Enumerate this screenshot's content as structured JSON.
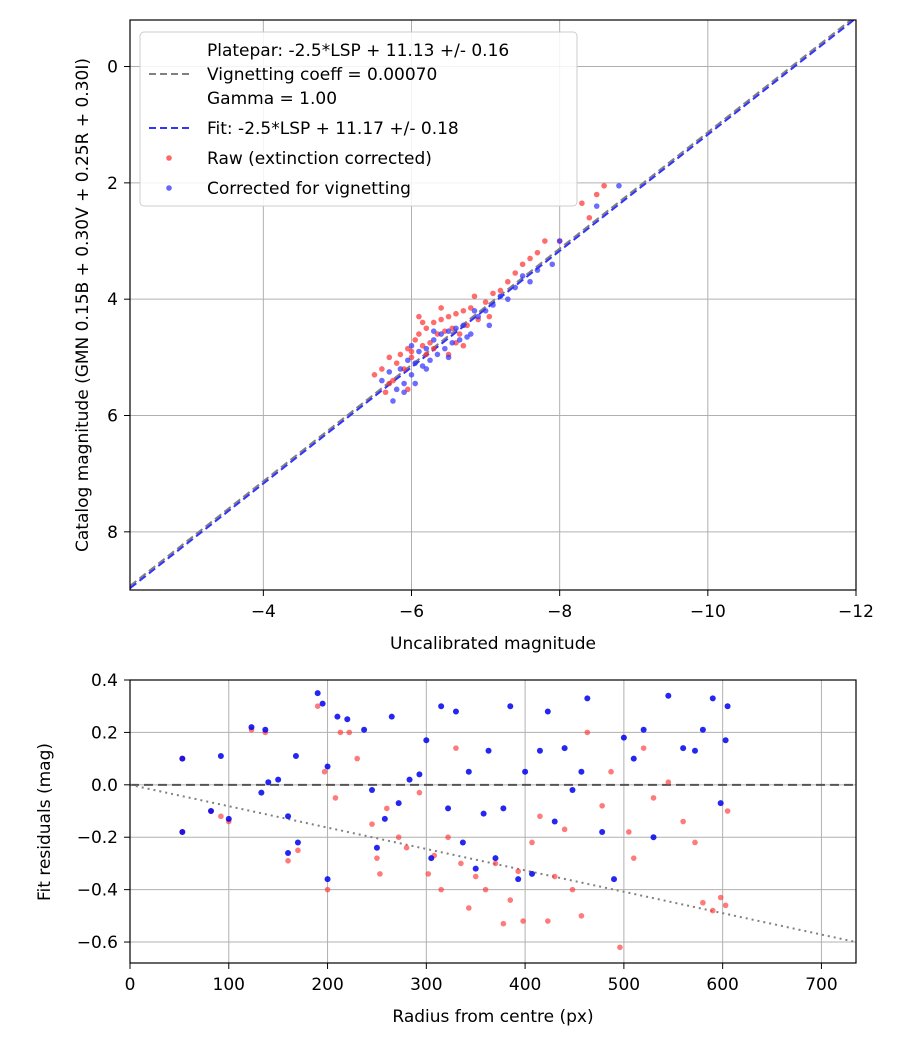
{
  "chart_data": [
    {
      "type": "scatter",
      "xlabel": "Uncalibrated magnitude",
      "ylabel": "Catalog magnitude (GMN 0.15B + 0.30V + 0.25R + 0.30I)",
      "xlim": [
        -2.2,
        -12.0
      ],
      "ylim": [
        9.0,
        -0.8
      ],
      "x_ticks": [
        -4,
        -6,
        -8,
        -10,
        -12
      ],
      "y_ticks": [
        0,
        2,
        4,
        6,
        8
      ],
      "grid": true,
      "legend_position": "top-left",
      "legend": [
        {
          "label": "Platepar: -2.5*LSP + 11.13 +/- 0.16",
          "marker": "none"
        },
        {
          "label": "Vignetting coeff = 0.00070",
          "marker": "dashed-line",
          "color": "#808080"
        },
        {
          "label": "Gamma = 1.00",
          "marker": "none"
        },
        {
          "label": "Fit: -2.5*LSP + 11.17 +/- 0.18",
          "marker": "dashed-line",
          "color": "#3333ff"
        },
        {
          "label": "Raw (extinction corrected)",
          "marker": "dot",
          "color": "#ff3333"
        },
        {
          "label": "Corrected for vignetting",
          "marker": "dot",
          "color": "#3333ff"
        }
      ],
      "lines": [
        {
          "name": "Platepar",
          "slope_per_lsp": -2.5,
          "intercept": 11.13,
          "x_range": [
            -2.2,
            -12.0
          ],
          "color": "#808080",
          "style": "dashed"
        },
        {
          "name": "Fit",
          "slope_per_lsp": -2.5,
          "intercept": 11.17,
          "x_range": [
            -2.2,
            -12.0
          ],
          "color": "#3333ff",
          "style": "dashed"
        }
      ],
      "series": [
        {
          "name": "Raw (extinction corrected)",
          "color": "#ff3333",
          "points": [
            [
              -5.5,
              5.3
            ],
            [
              -5.6,
              5.2
            ],
            [
              -5.7,
              5.0
            ],
            [
              -5.75,
              5.4
            ],
            [
              -5.8,
              5.1
            ],
            [
              -5.85,
              4.95
            ],
            [
              -5.9,
              5.2
            ],
            [
              -5.95,
              4.85
            ],
            [
              -6.0,
              5.0
            ],
            [
              -6.05,
              4.7
            ],
            [
              -6.1,
              4.6
            ],
            [
              -6.15,
              4.8
            ],
            [
              -6.2,
              4.5
            ],
            [
              -6.25,
              4.75
            ],
            [
              -6.3,
              4.4
            ],
            [
              -6.35,
              4.6
            ],
            [
              -6.4,
              4.35
            ],
            [
              -6.45,
              4.55
            ],
            [
              -6.5,
              4.3
            ],
            [
              -6.55,
              4.5
            ],
            [
              -6.6,
              4.25
            ],
            [
              -6.65,
              4.6
            ],
            [
              -6.7,
              4.2
            ],
            [
              -6.75,
              4.45
            ],
            [
              -6.8,
              4.15
            ],
            [
              -6.9,
              4.35
            ],
            [
              -7.0,
              4.05
            ],
            [
              -7.1,
              3.9
            ],
            [
              -7.2,
              3.85
            ],
            [
              -7.3,
              3.7
            ],
            [
              -7.4,
              3.55
            ],
            [
              -7.5,
              3.4
            ],
            [
              -7.6,
              3.3
            ],
            [
              -7.7,
              3.2
            ],
            [
              -7.8,
              3.0
            ],
            [
              -8.0,
              3.0
            ],
            [
              -8.3,
              2.35
            ],
            [
              -8.5,
              2.2
            ],
            [
              -8.6,
              2.05
            ],
            [
              -8.4,
              2.6
            ],
            [
              -5.95,
              5.55
            ],
            [
              -6.0,
              4.9
            ],
            [
              -6.1,
              4.3
            ],
            [
              -6.2,
              4.95
            ],
            [
              -6.3,
              4.85
            ],
            [
              -6.4,
              4.15
            ],
            [
              -6.5,
              4.95
            ],
            [
              -6.6,
              4.75
            ],
            [
              -6.7,
              4.8
            ],
            [
              -5.7,
              5.45
            ],
            [
              -5.65,
              5.6
            ],
            [
              -6.15,
              4.4
            ],
            [
              -6.85,
              3.95
            ],
            [
              -7.05,
              4.3
            ]
          ]
        },
        {
          "name": "Corrected for vignetting",
          "color": "#3333ff",
          "points": [
            [
              -5.6,
              5.4
            ],
            [
              -5.7,
              5.25
            ],
            [
              -5.75,
              5.75
            ],
            [
              -5.8,
              5.55
            ],
            [
              -5.85,
              5.2
            ],
            [
              -5.9,
              5.45
            ],
            [
              -5.95,
              5.05
            ],
            [
              -6.0,
              5.3
            ],
            [
              -6.05,
              5.1
            ],
            [
              -6.1,
              4.9
            ],
            [
              -6.15,
              5.15
            ],
            [
              -6.2,
              4.85
            ],
            [
              -6.25,
              5.05
            ],
            [
              -6.3,
              4.7
            ],
            [
              -6.35,
              4.95
            ],
            [
              -6.4,
              4.6
            ],
            [
              -6.45,
              4.85
            ],
            [
              -6.5,
              4.55
            ],
            [
              -6.55,
              4.75
            ],
            [
              -6.6,
              4.5
            ],
            [
              -6.65,
              4.7
            ],
            [
              -6.7,
              4.45
            ],
            [
              -6.8,
              4.6
            ],
            [
              -6.9,
              4.3
            ],
            [
              -7.0,
              4.2
            ],
            [
              -7.1,
              4.1
            ],
            [
              -7.2,
              3.95
            ],
            [
              -7.3,
              4.0
            ],
            [
              -7.4,
              3.8
            ],
            [
              -7.5,
              3.6
            ],
            [
              -7.6,
              3.7
            ],
            [
              -7.7,
              3.5
            ],
            [
              -7.9,
              3.4
            ],
            [
              -8.0,
              3.0
            ],
            [
              -8.5,
              2.4
            ],
            [
              -8.8,
              2.05
            ],
            [
              -6.0,
              4.8
            ],
            [
              -6.2,
              5.2
            ],
            [
              -6.3,
              4.55
            ],
            [
              -6.5,
              5.0
            ],
            [
              -6.75,
              4.65
            ],
            [
              -5.9,
              5.6
            ],
            [
              -6.05,
              5.45
            ],
            [
              -6.85,
              4.2
            ],
            [
              -7.05,
              4.45
            ]
          ]
        }
      ]
    },
    {
      "type": "scatter",
      "xlabel": "Radius from centre (px)",
      "ylabel": "Fit residuals (mag)",
      "xlim": [
        0,
        735
      ],
      "ylim": [
        -0.68,
        0.4
      ],
      "x_ticks": [
        0,
        100,
        200,
        300,
        400,
        500,
        600,
        700
      ],
      "y_ticks": [
        -0.6,
        -0.4,
        -0.2,
        0.0,
        0.2,
        0.4
      ],
      "y_tick_labels": [
        "−0.6",
        "−0.4",
        "−0.2",
        "0.0",
        "0.2",
        "0.4"
      ],
      "grid": true,
      "reference_lines": [
        {
          "name": "zero",
          "y": 0.0,
          "color": "#555555",
          "style": "dashed"
        },
        {
          "name": "vignetting trend",
          "from": [
            0,
            0.0
          ],
          "to": [
            735,
            -0.6
          ],
          "color": "#808080",
          "style": "dotted"
        }
      ],
      "series": [
        {
          "name": "Raw (extinction corrected)",
          "color": "#ff3333",
          "points": [
            [
              53,
              0.1
            ],
            [
              53,
              -0.18
            ],
            [
              82,
              -0.1
            ],
            [
              92,
              -0.12
            ],
            [
              100,
              -0.14
            ],
            [
              123,
              0.21
            ],
            [
              137,
              0.2
            ],
            [
              160,
              -0.29
            ],
            [
              170,
              -0.25
            ],
            [
              190,
              0.3
            ],
            [
              197,
              0.05
            ],
            [
              200,
              -0.4
            ],
            [
              208,
              -0.05
            ],
            [
              213,
              0.2
            ],
            [
              222,
              0.2
            ],
            [
              230,
              0.1
            ],
            [
              245,
              -0.15
            ],
            [
              250,
              -0.28
            ],
            [
              253,
              -0.34
            ],
            [
              260,
              -0.09
            ],
            [
              272,
              -0.2
            ],
            [
              280,
              -0.24
            ],
            [
              293,
              -0.03
            ],
            [
              302,
              -0.34
            ],
            [
              308,
              -0.27
            ],
            [
              315,
              -0.4
            ],
            [
              322,
              -0.2
            ],
            [
              330,
              0.14
            ],
            [
              335,
              -0.3
            ],
            [
              343,
              -0.47
            ],
            [
              350,
              -0.35
            ],
            [
              360,
              -0.4
            ],
            [
              370,
              -0.3
            ],
            [
              378,
              -0.53
            ],
            [
              385,
              -0.44
            ],
            [
              393,
              -0.33
            ],
            [
              398,
              -0.52
            ],
            [
              407,
              -0.22
            ],
            [
              415,
              -0.12
            ],
            [
              423,
              -0.52
            ],
            [
              430,
              -0.35
            ],
            [
              440,
              -0.17
            ],
            [
              448,
              -0.4
            ],
            [
              457,
              -0.5
            ],
            [
              463,
              0.2
            ],
            [
              478,
              -0.08
            ],
            [
              487,
              0.05
            ],
            [
              496,
              -0.62
            ],
            [
              505,
              -0.18
            ],
            [
              510,
              -0.28
            ],
            [
              520,
              0.14
            ],
            [
              530,
              -0.05
            ],
            [
              545,
              0.01
            ],
            [
              560,
              -0.14
            ],
            [
              572,
              -0.22
            ],
            [
              580,
              -0.45
            ],
            [
              590,
              -0.48
            ],
            [
              598,
              -0.43
            ],
            [
              603,
              -0.46
            ],
            [
              605,
              -0.1
            ]
          ]
        },
        {
          "name": "Corrected for vignetting",
          "color": "#0000ee",
          "points": [
            [
              53,
              0.1
            ],
            [
              53,
              -0.18
            ],
            [
              82,
              -0.1
            ],
            [
              92,
              0.11
            ],
            [
              100,
              -0.13
            ],
            [
              123,
              0.22
            ],
            [
              133,
              -0.03
            ],
            [
              137,
              0.21
            ],
            [
              140,
              0.01
            ],
            [
              150,
              0.02
            ],
            [
              160,
              -0.12
            ],
            [
              160,
              -0.26
            ],
            [
              168,
              0.11
            ],
            [
              170,
              -0.22
            ],
            [
              190,
              0.35
            ],
            [
              195,
              0.31
            ],
            [
              200,
              0.07
            ],
            [
              200,
              -0.36
            ],
            [
              210,
              0.26
            ],
            [
              220,
              0.25
            ],
            [
              237,
              0.21
            ],
            [
              245,
              -0.02
            ],
            [
              250,
              -0.24
            ],
            [
              258,
              -0.13
            ],
            [
              265,
              0.26
            ],
            [
              272,
              -0.07
            ],
            [
              283,
              0.02
            ],
            [
              293,
              0.04
            ],
            [
              300,
              0.17
            ],
            [
              305,
              -0.28
            ],
            [
              315,
              0.3
            ],
            [
              322,
              -0.09
            ],
            [
              330,
              0.28
            ],
            [
              337,
              -0.22
            ],
            [
              343,
              0.05
            ],
            [
              350,
              -0.32
            ],
            [
              358,
              -0.11
            ],
            [
              363,
              0.13
            ],
            [
              370,
              -0.28
            ],
            [
              378,
              -0.09
            ],
            [
              385,
              0.3
            ],
            [
              393,
              -0.36
            ],
            [
              400,
              0.05
            ],
            [
              407,
              -0.34
            ],
            [
              415,
              0.13
            ],
            [
              423,
              0.28
            ],
            [
              430,
              -0.14
            ],
            [
              440,
              0.14
            ],
            [
              448,
              -0.02
            ],
            [
              457,
              0.05
            ],
            [
              463,
              0.33
            ],
            [
              478,
              -0.18
            ],
            [
              490,
              -0.36
            ],
            [
              500,
              0.18
            ],
            [
              510,
              0.1
            ],
            [
              520,
              0.21
            ],
            [
              530,
              -0.2
            ],
            [
              545,
              0.34
            ],
            [
              560,
              0.14
            ],
            [
              572,
              0.13
            ],
            [
              580,
              0.21
            ],
            [
              590,
              0.33
            ],
            [
              598,
              -0.07
            ],
            [
              603,
              0.17
            ],
            [
              605,
              0.3
            ]
          ]
        }
      ]
    }
  ]
}
